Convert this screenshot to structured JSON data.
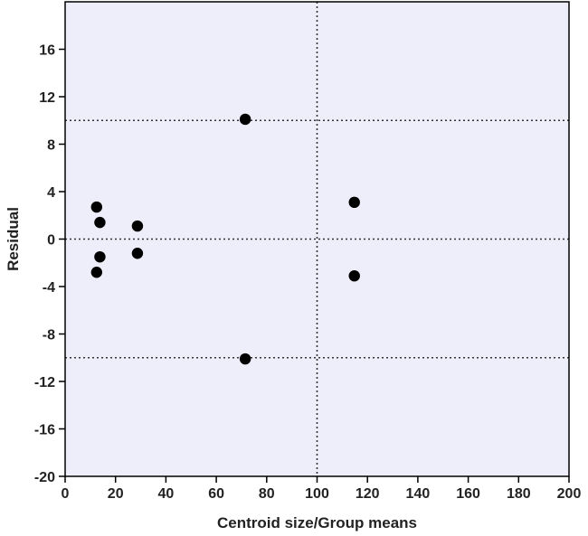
{
  "chart_data": {
    "type": "scatter",
    "xlabel": "Centroid size/Group means",
    "ylabel": "Residual",
    "xlim": [
      0,
      200
    ],
    "ylim": [
      -20,
      20
    ],
    "x_ticks": [
      0,
      20,
      40,
      60,
      80,
      100,
      120,
      140,
      160,
      180,
      200
    ],
    "y_ticks": [
      -20,
      -16,
      -12,
      -8,
      -4,
      0,
      4,
      8,
      12,
      16
    ],
    "grid": false,
    "plot_background": "#eeeefa",
    "point_color": "#000000",
    "reference_lines": {
      "horizontal": [
        10,
        0,
        -10
      ],
      "vertical": [
        100
      ]
    },
    "series": [
      {
        "points": [
          {
            "x": 12.5,
            "y": 2.7
          },
          {
            "x": 13.8,
            "y": 1.4
          },
          {
            "x": 13.8,
            "y": -1.5
          },
          {
            "x": 12.5,
            "y": -2.8
          },
          {
            "x": 28.7,
            "y": 1.1
          },
          {
            "x": 28.7,
            "y": -1.2
          },
          {
            "x": 71.5,
            "y": 10.1
          },
          {
            "x": 71.5,
            "y": -10.1
          },
          {
            "x": 114.8,
            "y": 3.1
          },
          {
            "x": 114.8,
            "y": -3.1
          }
        ]
      }
    ]
  }
}
